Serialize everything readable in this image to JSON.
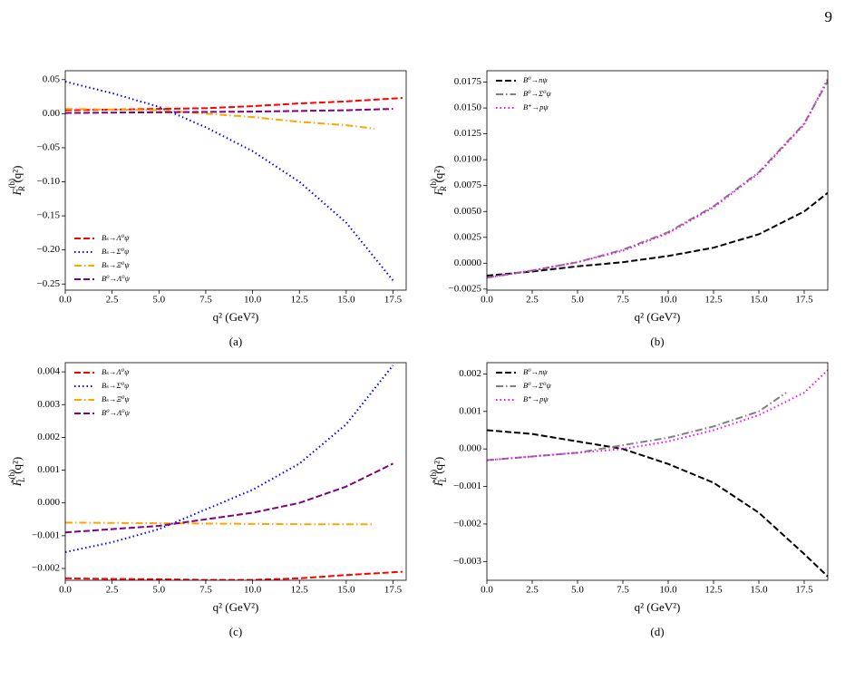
{
  "page_number": "9",
  "chart_data": [
    {
      "type": "line",
      "caption": "(a)",
      "xlabel": "q² (GeV²)",
      "ylabel": {
        "base": "F",
        "sup": "(b)",
        "sub": "R",
        "tail": "(q²)"
      },
      "legend": "lower left",
      "xlim": [
        0,
        18.2
      ],
      "ylim": [
        -0.259,
        0.063
      ],
      "xticks": [
        {
          "value": 0,
          "label": "0.0"
        },
        2.5,
        {
          "value": 5,
          "label": "5.0"
        },
        7.5,
        {
          "value": 10,
          "label": "10.0"
        },
        12.5,
        {
          "value": 15,
          "label": "15.0"
        },
        17.5
      ],
      "yticks": [
        {
          "value": -0.25,
          "label": "−0.25"
        },
        {
          "value": -0.2,
          "label": "−0.20"
        },
        {
          "value": -0.15,
          "label": "−0.15"
        },
        {
          "value": -0.1,
          "label": "−0.10"
        },
        {
          "value": -0.05,
          "label": "−0.05"
        },
        {
          "value": 0,
          "label": "0.00"
        },
        0.05
      ],
      "series": [
        {
          "name": "Bₛ→Λ⁰ψ",
          "color": "#ff0000",
          "dash": "dashed",
          "x": [
            0,
            2.5,
            5,
            7.5,
            10,
            12.5,
            15,
            18
          ],
          "values": [
            0.005,
            0.006,
            0.007,
            0.008,
            0.011,
            0.015,
            0.018,
            0.023
          ]
        },
        {
          "name": "Bₛ→Σ⁰ψ",
          "color": "#0000ff",
          "dash": "dotted",
          "x": [
            0,
            2.5,
            5,
            7.5,
            10,
            12.5,
            15,
            17.5
          ],
          "values": [
            0.047,
            0.03,
            0.01,
            -0.02,
            -0.055,
            -0.1,
            -0.16,
            -0.245
          ]
        },
        {
          "name": "Bₛ→Ξ⁰ψ",
          "color": "#ffa500",
          "dash": "dashdot",
          "x": [
            0,
            2.5,
            5,
            7.5,
            10,
            12.5,
            15,
            16.5
          ],
          "values": [
            0.007,
            0.006,
            0.005,
            0.0,
            -0.005,
            -0.012,
            -0.017,
            -0.022
          ]
        },
        {
          "name": "B⁰→Λ⁰ψ",
          "color": "#800080",
          "dash": "dashed",
          "x": [
            0,
            2.5,
            5,
            7.5,
            10,
            12.5,
            15,
            17.5
          ],
          "values": [
            0.001,
            0.0015,
            0.002,
            0.0025,
            0.003,
            0.004,
            0.005,
            0.007
          ]
        }
      ]
    },
    {
      "type": "line",
      "caption": "(b)",
      "xlabel": "q² (GeV²)",
      "ylabel": {
        "base": "F",
        "sup": "(b)",
        "sub": "R",
        "tail": "(q²)"
      },
      "legend": "upper left",
      "xlim": [
        0,
        18.8
      ],
      "ylim": [
        -0.0026,
        0.0186
      ],
      "xticks": [
        {
          "value": 0,
          "label": "0.0"
        },
        2.5,
        {
          "value": 5,
          "label": "5.0"
        },
        7.5,
        {
          "value": 10,
          "label": "10.0"
        },
        12.5,
        {
          "value": 15,
          "label": "15.0"
        },
        17.5
      ],
      "yticks": [
        {
          "value": -0.0025,
          "label": "−0.0025"
        },
        {
          "value": 0,
          "label": "0.0000"
        },
        0.0025,
        {
          "value": 0.005,
          "label": "0.0050"
        },
        0.0075,
        {
          "value": 0.01,
          "label": "0.0100"
        },
        0.0125,
        {
          "value": 0.015,
          "label": "0.0150"
        },
        0.0175
      ],
      "series": [
        {
          "name": "B⁰→nψ",
          "color": "#000000",
          "dash": "dashed",
          "x": [
            0,
            2.5,
            5,
            7.5,
            10,
            12.5,
            15,
            17.5,
            18.8
          ],
          "values": [
            -0.0012,
            -0.0008,
            -0.0003,
            0.0001,
            0.0007,
            0.0015,
            0.0028,
            0.005,
            0.0068
          ]
        },
        {
          "name": "B⁰→Σ⁰ψ",
          "color": "#808080",
          "dash": "dashdot",
          "x": [
            0,
            2.5,
            5,
            7.5,
            10,
            12.5,
            15,
            17.5,
            18.8
          ],
          "values": [
            -0.0014,
            -0.0007,
            0.0001,
            0.0013,
            0.003,
            0.0055,
            0.0088,
            0.0135,
            0.0176
          ]
        },
        {
          "name": "B⁺→pψ",
          "color": "#ff00ff",
          "dash": "dotted",
          "x": [
            0,
            2.5,
            5,
            7.5,
            10,
            12.5,
            15,
            17.5,
            18.8
          ],
          "values": [
            -0.0014,
            -0.0007,
            0.0001,
            0.0012,
            0.0029,
            0.0054,
            0.0087,
            0.0134,
            0.0178
          ]
        }
      ]
    },
    {
      "type": "line",
      "caption": "(c)",
      "xlabel": "q² (GeV²)",
      "ylabel": {
        "base": "F̃",
        "sup": "(b)",
        "sub": "L",
        "tail": "(q²)"
      },
      "legend": "upper left",
      "xlim": [
        0,
        18.2
      ],
      "ylim": [
        -0.00236,
        0.00428
      ],
      "xticks": [
        {
          "value": 0,
          "label": "0.0"
        },
        2.5,
        {
          "value": 5,
          "label": "5.0"
        },
        7.5,
        {
          "value": 10,
          "label": "10.0"
        },
        12.5,
        {
          "value": 15,
          "label": "15.0"
        },
        17.5
      ],
      "yticks": [
        {
          "value": -0.002,
          "label": "−0.002"
        },
        {
          "value": -0.001,
          "label": "−0.001"
        },
        {
          "value": 0,
          "label": "0.000"
        },
        0.001,
        0.002,
        0.003,
        0.004
      ],
      "series": [
        {
          "name": "Bₛ→Λ⁰ψ",
          "color": "#ff0000",
          "dash": "dashed",
          "x": [
            0,
            2.5,
            5,
            7.5,
            10,
            12.5,
            15,
            18
          ],
          "values": [
            -0.0023,
            -0.00232,
            -0.00233,
            -0.00235,
            -0.00235,
            -0.0023,
            -0.0022,
            -0.0021
          ]
        },
        {
          "name": "Bₛ→Σ⁰ψ",
          "color": "#0000ff",
          "dash": "dotted",
          "x": [
            0,
            2.5,
            5,
            7.5,
            10,
            12.5,
            15,
            17.5
          ],
          "values": [
            -0.0015,
            -0.0012,
            -0.0008,
            -0.0002,
            0.0004,
            0.0012,
            0.0024,
            0.0042
          ]
        },
        {
          "name": "Bₛ→Ξ⁰ψ",
          "color": "#ffa500",
          "dash": "dashdot",
          "x": [
            0,
            2.5,
            5,
            7.5,
            10,
            12.5,
            15,
            16.5
          ],
          "values": [
            -0.0006,
            -0.00061,
            -0.00062,
            -0.00063,
            -0.00064,
            -0.00065,
            -0.00065,
            -0.00065
          ]
        },
        {
          "name": "B⁰→Λ⁰ψ",
          "color": "#800080",
          "dash": "dashed",
          "x": [
            0,
            2.5,
            5,
            7.5,
            10,
            12.5,
            15,
            17.5
          ],
          "values": [
            -0.0009,
            -0.0008,
            -0.0007,
            -0.0005,
            -0.0003,
            0.0,
            0.0005,
            0.0012
          ]
        }
      ]
    },
    {
      "type": "line",
      "caption": "(d)",
      "xlabel": "q² (GeV²)",
      "ylabel": {
        "base": "F̃",
        "sup": "(b)",
        "sub": "L",
        "tail": "(q²)"
      },
      "legend": "upper left",
      "xlim": [
        0,
        18.8
      ],
      "ylim": [
        -0.0035,
        0.0023
      ],
      "xticks": [
        {
          "value": 0,
          "label": "0.0"
        },
        2.5,
        {
          "value": 5,
          "label": "5.0"
        },
        7.5,
        {
          "value": 10,
          "label": "10.0"
        },
        12.5,
        {
          "value": 15,
          "label": "15.0"
        },
        17.5
      ],
      "yticks": [
        {
          "value": -0.003,
          "label": "−0.003"
        },
        {
          "value": -0.002,
          "label": "−0.002"
        },
        {
          "value": -0.001,
          "label": "−0.001"
        },
        {
          "value": 0,
          "label": "0.000"
        },
        0.001,
        0.002
      ],
      "series": [
        {
          "name": "B⁰→nψ",
          "color": "#000000",
          "dash": "dashed",
          "x": [
            0,
            2.5,
            5,
            7.5,
            10,
            12.5,
            15,
            17.5,
            18.8
          ],
          "values": [
            0.0005,
            0.0004,
            0.0002,
            0.0,
            -0.0004,
            -0.0009,
            -0.0017,
            -0.0028,
            -0.0034
          ]
        },
        {
          "name": "B⁰→Σ⁰ψ",
          "color": "#808080",
          "dash": "dashdot",
          "x": [
            0,
            2.5,
            5,
            7.5,
            10,
            12.5,
            15,
            16.5
          ],
          "values": [
            -0.0003,
            -0.0002,
            -0.0001,
            0.0001,
            0.0003,
            0.0006,
            0.001,
            0.0015
          ]
        },
        {
          "name": "B⁺→pψ",
          "color": "#ff00ff",
          "dash": "dotted",
          "x": [
            0,
            2.5,
            5,
            7.5,
            10,
            12.5,
            15,
            17.5,
            18.8
          ],
          "values": [
            -0.0003,
            -0.0002,
            -0.0001,
            0.0,
            0.0002,
            0.0005,
            0.0009,
            0.0015,
            0.0021
          ]
        }
      ]
    }
  ]
}
